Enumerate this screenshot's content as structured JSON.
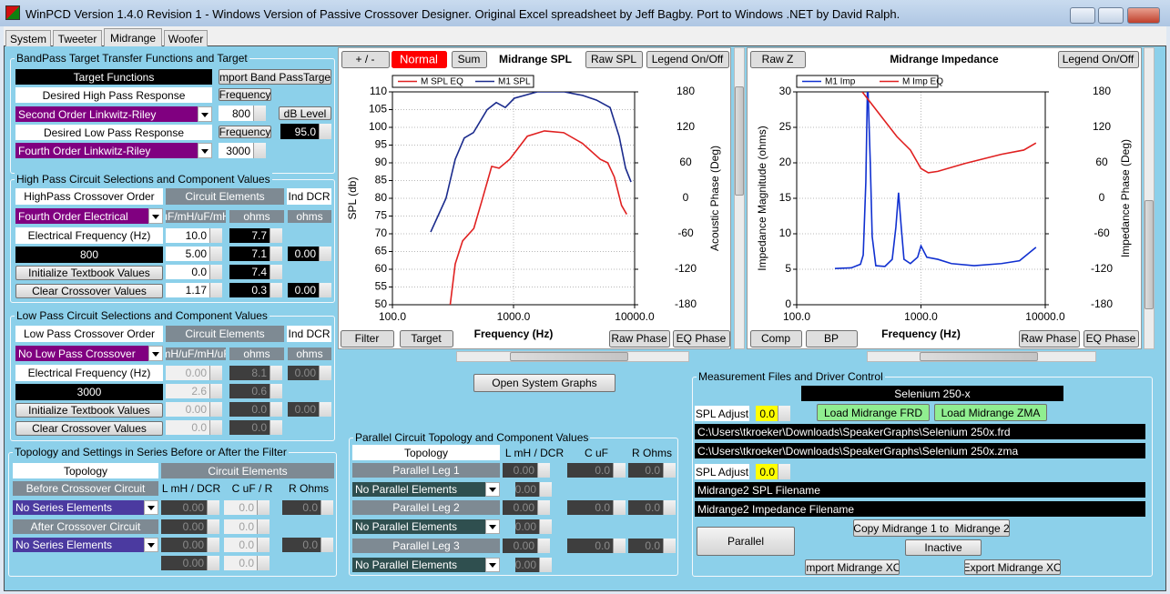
{
  "window": {
    "title": "WinPCD Version 1.4.0 Revision 1 - Windows Version of Passive Crossover Designer. Original Excel spreadsheet by Jeff Bagby. Port to Windows .NET by David Ralph.",
    "tabs": [
      "System",
      "Tweeter",
      "Midrange",
      "Woofer"
    ]
  },
  "bandpass": {
    "title": "BandPass Target Transfer Functions and Target",
    "fields": [
      "Target Functions",
      "Import Band PassTarget",
      "Desired High Pass Response",
      "Frequency",
      "Second Order Linkwitz-Riley",
      "800",
      "dB Level",
      "Desired Low Pass Response",
      "Frequency",
      "95.0",
      "Fourth Order Linkwitz-Riley",
      "3000"
    ]
  },
  "high_pass": {
    "title": "High Pass Circuit Selections and Component Values",
    "fields": [
      "HighPass Crossover Order",
      "Circuit Elements",
      "Ind DCR",
      "Fourth Order Electrical",
      "uF/mH/uF/mH",
      "ohms",
      "ohms",
      "Electrical Frequency (Hz)",
      "10.0",
      "7.7",
      "800",
      "5.00",
      "7.1",
      "0.00",
      "Initialize Textbook Values",
      "0.0",
      "7.4",
      "Clear Crossover Values",
      "1.17",
      "0.3",
      "0.00"
    ]
  },
  "low_pass": {
    "title": "Low Pass Circuit Selections and Component Values",
    "fields": [
      "Low Pass Crossover Order",
      "Circuit Elements",
      "Ind DCR",
      "No Low Pass Crossover",
      "mH/uF/mH/uF",
      "ohms",
      "ohms",
      "Electrical Frequency (Hz)",
      "0.00",
      "8.1",
      "0.00",
      "3000",
      "2.6",
      "0.6",
      "Initialize Textbook Values",
      "0.00",
      "0.0",
      "0.00",
      "Clear Crossover Values",
      "0.0",
      "0.0"
    ]
  },
  "series_topology": {
    "title": "Topology and Settings in Series Before or After the Filter",
    "fields": [
      "Topology",
      "Circuit Elements",
      "Before Crossover Circuit",
      "L mH / DCR",
      "C uF / R",
      "R Ohms",
      "No Series Elements",
      "0.00",
      "0.0",
      "0.0",
      "After Crossover Circuit",
      "0.00",
      "0.0",
      "No Series Elements",
      "0.00",
      "0.0",
      "0.0",
      "0.00",
      "0.0"
    ]
  },
  "parallel": {
    "title": "Parallel Circuit Topology and Component Values",
    "fields": [
      "Topology",
      "L mH / DCR",
      "C uF",
      "R Ohms",
      "Parallel Leg 1",
      "0.00",
      "0.0",
      "0.0",
      "No Parallel Elements",
      "0.00",
      "Parallel Leg 2",
      "0.00",
      "0.0",
      "0.0",
      "No Parallel Elements",
      "0.00",
      "Parallel Leg 3",
      "0.00",
      "0.0",
      "0.0",
      "No Parallel Elements",
      "0.00"
    ]
  },
  "open_system_graphs": "Open System Graphs",
  "measurement": {
    "title": "Measurement Files and Driver Control",
    "fields": [
      "Selenium 250-x",
      "SPL Adjust",
      "0.0",
      "Load Midrange FRD",
      "Load Midrange ZMA",
      "C:\\Users\\tkroeker\\Downloads\\SpeakerGraphs\\Selenium 250x.frd",
      "C:\\Users\\tkroeker\\Downloads\\SpeakerGraphs\\Selenium 250x.zma",
      "SPL Adjust",
      "0.0",
      "Midrange2 SPL Filename",
      "Midrange2 Impedance Filename",
      "Copy Midrange 1 to  Midrange 2",
      "Parallel",
      "Inactive",
      "Import Midrange XO",
      "Export Midrange XO"
    ]
  },
  "spl_chart": {
    "type": "line",
    "title": "Midrange SPL",
    "buttons": [
      "+ / -",
      "Normal",
      "Sum",
      "Raw SPL",
      "Legend On/Off",
      "Filter",
      "Target",
      "Raw Phase",
      "EQ Phase"
    ],
    "xlabel": "Frequency (Hz)",
    "ylabel": "SPL (db)",
    "y2label": "Acoustic Phase (Deg)",
    "log_x": true,
    "grid": true,
    "xlim": [
      100,
      10000
    ],
    "xticks": [
      {
        "value": 100,
        "label": "100.0"
      },
      {
        "value": 1000,
        "label": "1000.0"
      },
      {
        "value": 10000,
        "label": "10000.0"
      }
    ],
    "ylim": [
      50,
      110
    ],
    "yticks": [
      50,
      55,
      60,
      65,
      70,
      75,
      80,
      85,
      90,
      95,
      100,
      105,
      110
    ],
    "y2lim": [
      -180,
      180
    ],
    "y2ticks": [
      -180,
      -120,
      -60,
      0,
      60,
      120,
      180
    ],
    "series": [
      {
        "name": "M SPL EQ",
        "color": "#e02020",
        "x": [
          300,
          330,
          380,
          470,
          550,
          660,
          760,
          930,
          1300,
          1800,
          2600,
          3700,
          5200,
          6000,
          6800,
          7800,
          8600
        ],
        "values": [
          50,
          61.5,
          68,
          71.5,
          79.5,
          89,
          88.5,
          91,
          97.5,
          99,
          98.5,
          95.5,
          91,
          90,
          86,
          78,
          75.5
        ]
      },
      {
        "name": "M1 SPL",
        "color": "#1a2a8c",
        "x": [
          207,
          277,
          330,
          392,
          466,
          606,
          720,
          855,
          1015,
          1570,
          2630,
          3720,
          4830,
          6270,
          7460,
          8420,
          9340
        ],
        "values": [
          70.5,
          80,
          91,
          97,
          98.5,
          105,
          107,
          105.6,
          108.2,
          110,
          110,
          109,
          107.7,
          105.6,
          97.4,
          88.5,
          84.6
        ]
      }
    ]
  },
  "impedance_chart": {
    "type": "line",
    "title": "Midrange Impedance",
    "buttons": [
      "Raw Z",
      "Legend On/Off",
      "Comp",
      "BP",
      "Raw Phase",
      "EQ Phase"
    ],
    "xlabel": "Frequency (Hz)",
    "ylabel": "Impedance Magnitude (ohms)",
    "y2label": "Impedance Phase (Deg)",
    "log_x": true,
    "grid": true,
    "xlim": [
      100,
      10000
    ],
    "xticks": [
      {
        "value": 100,
        "label": "100.0"
      },
      {
        "value": 1000,
        "label": "1000.0"
      },
      {
        "value": 10000,
        "label": "10000.0"
      }
    ],
    "ylim": [
      0,
      30
    ],
    "yticks": [
      0,
      5,
      10,
      15,
      20,
      25,
      30
    ],
    "y2lim": [
      -180,
      180
    ],
    "y2ticks": [
      -180,
      -120,
      -60,
      0,
      60,
      120,
      180
    ],
    "series": [
      {
        "name": "M1 Imp",
        "color": "#1030d0",
        "x": [
          203,
          275,
          326,
          343,
          360,
          372,
          391,
          405,
          433,
          513,
          587,
          628,
          660,
          694,
          730,
          822,
          940,
          1000,
          1114,
          1366,
          1756,
          2680,
          4440,
          6210,
          8420
        ],
        "values": [
          5.1,
          5.2,
          5.7,
          7,
          17.3,
          32,
          20,
          9.6,
          5.5,
          5.4,
          6.4,
          10.9,
          15.8,
          10.9,
          6.4,
          5.8,
          6.7,
          8.3,
          6.7,
          6.4,
          5.8,
          5.5,
          5.8,
          6.2,
          8.1
        ]
      },
      {
        "name": "M Imp EQ",
        "color": "#e02020",
        "x": [
          337,
          457,
          640,
          822,
          1000,
          1145,
          1366,
          2250,
          4440,
          6720,
          8420
        ],
        "values": [
          30,
          27,
          23.7,
          21.8,
          19.2,
          18.6,
          18.8,
          19.9,
          21.2,
          21.8,
          22.8
        ]
      }
    ]
  }
}
